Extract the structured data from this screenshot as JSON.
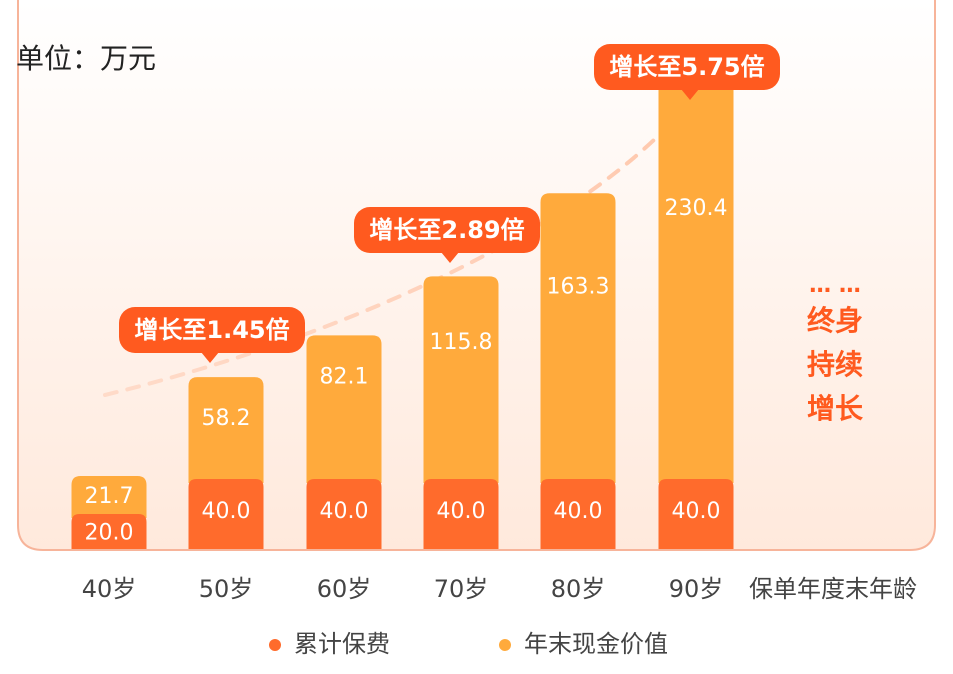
{
  "unit_label": "单位：万元",
  "side_note": {
    "dots": "… …",
    "lines": [
      "终身",
      "持续",
      "增长"
    ]
  },
  "callouts": [
    "增长至1.45倍",
    "增长至2.89倍",
    "增长至5.75倍"
  ],
  "colors": {
    "premium": "#FF6B2C",
    "cash_value": "#FFAA3C",
    "callout": "#FF5A1F",
    "axis_text": "#444444",
    "side_text": "#FF5A1F",
    "frame": "#F7B49A",
    "bg_top": "#FFFFFF",
    "bg_bottom": "#FFE9DC"
  },
  "chart_data": {
    "type": "bar",
    "stacked": true,
    "categories": [
      "40岁",
      "50岁",
      "60岁",
      "70岁",
      "80岁",
      "90岁"
    ],
    "xlabel": "保单年度末年龄",
    "series": [
      {
        "name": "累计保费",
        "values": [
          20.0,
          40.0,
          40.0,
          40.0,
          40.0,
          40.0
        ],
        "labels": [
          "20.0",
          "40.0",
          "40.0",
          "40.0",
          "40.0",
          "40.0"
        ]
      },
      {
        "name": "年末现金价值",
        "values": [
          21.7,
          58.2,
          82.1,
          115.8,
          163.3,
          230.4
        ],
        "labels": [
          "21.7",
          "58.2",
          "82.1",
          "115.8",
          "163.3",
          "230.4"
        ]
      }
    ],
    "legend_position": "bottom"
  }
}
